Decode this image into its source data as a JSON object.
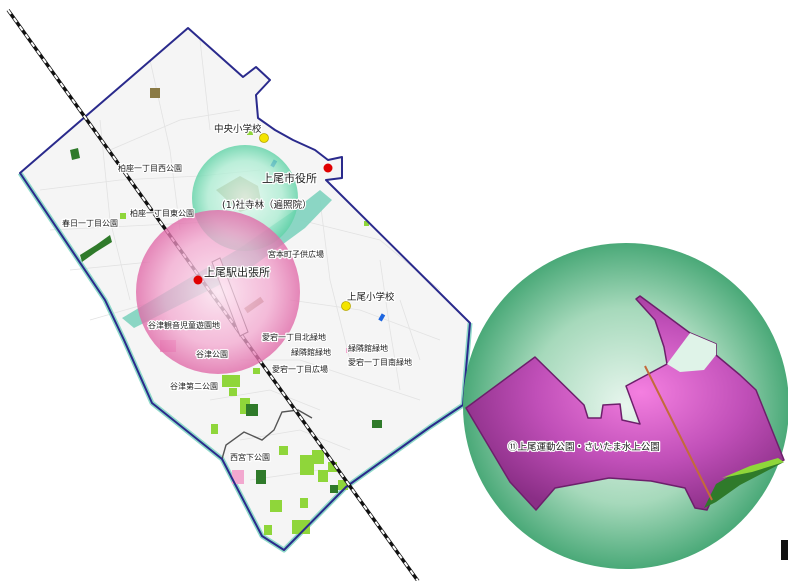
{
  "map": {
    "labels": {
      "shrine_forest": "(1)社寺林（遍照院）",
      "city_hall": "上尾市役所",
      "station_office": "上尾駅出張所",
      "chuo_school": "中央小学校",
      "ageo_school": "上尾小学校",
      "kashiwaza_west_park": "柏座一丁目西公園",
      "kashiwaza_east_park": "柏座一丁目東公園",
      "kasuga_park": "春日一丁目公園",
      "miyamoto_plaza": "宮本町子供広場",
      "yatsu_children_park": "谷津観音児童遊園地",
      "yatsu_park": "谷津公園",
      "yatsu_second_park": "谷津第二公園",
      "atago_north_green": "愛宕一丁目北緑地",
      "ryokurin_green_a": "緑隣館緑地",
      "ryokurin_green_b": "緑隣館緑地",
      "atago_south_green": "愛宕一丁目南緑地",
      "atago_plaza": "愛宕一丁目広場",
      "nishimiyashita_park": "西宮下公園",
      "sports_park": "⑪上尾運動公園・さいたま水上公園"
    },
    "colors": {
      "boundary": "#2a2a8c",
      "river": "#7fcfc0",
      "green_light": "#8fd63a",
      "green_dark": "#2f7a2a",
      "park_magenta": "#b53fb5",
      "pink_buffer": "#e37ab5",
      "teal_buffer": "#62d6a8",
      "marker_red": "#e00000",
      "marker_yellow": "#f4e400",
      "railway": "#111111"
    },
    "icons": [
      "railway-line",
      "government-office-marker",
      "school-marker",
      "park-polygon",
      "buffer-circle",
      "district-boundary"
    ]
  }
}
